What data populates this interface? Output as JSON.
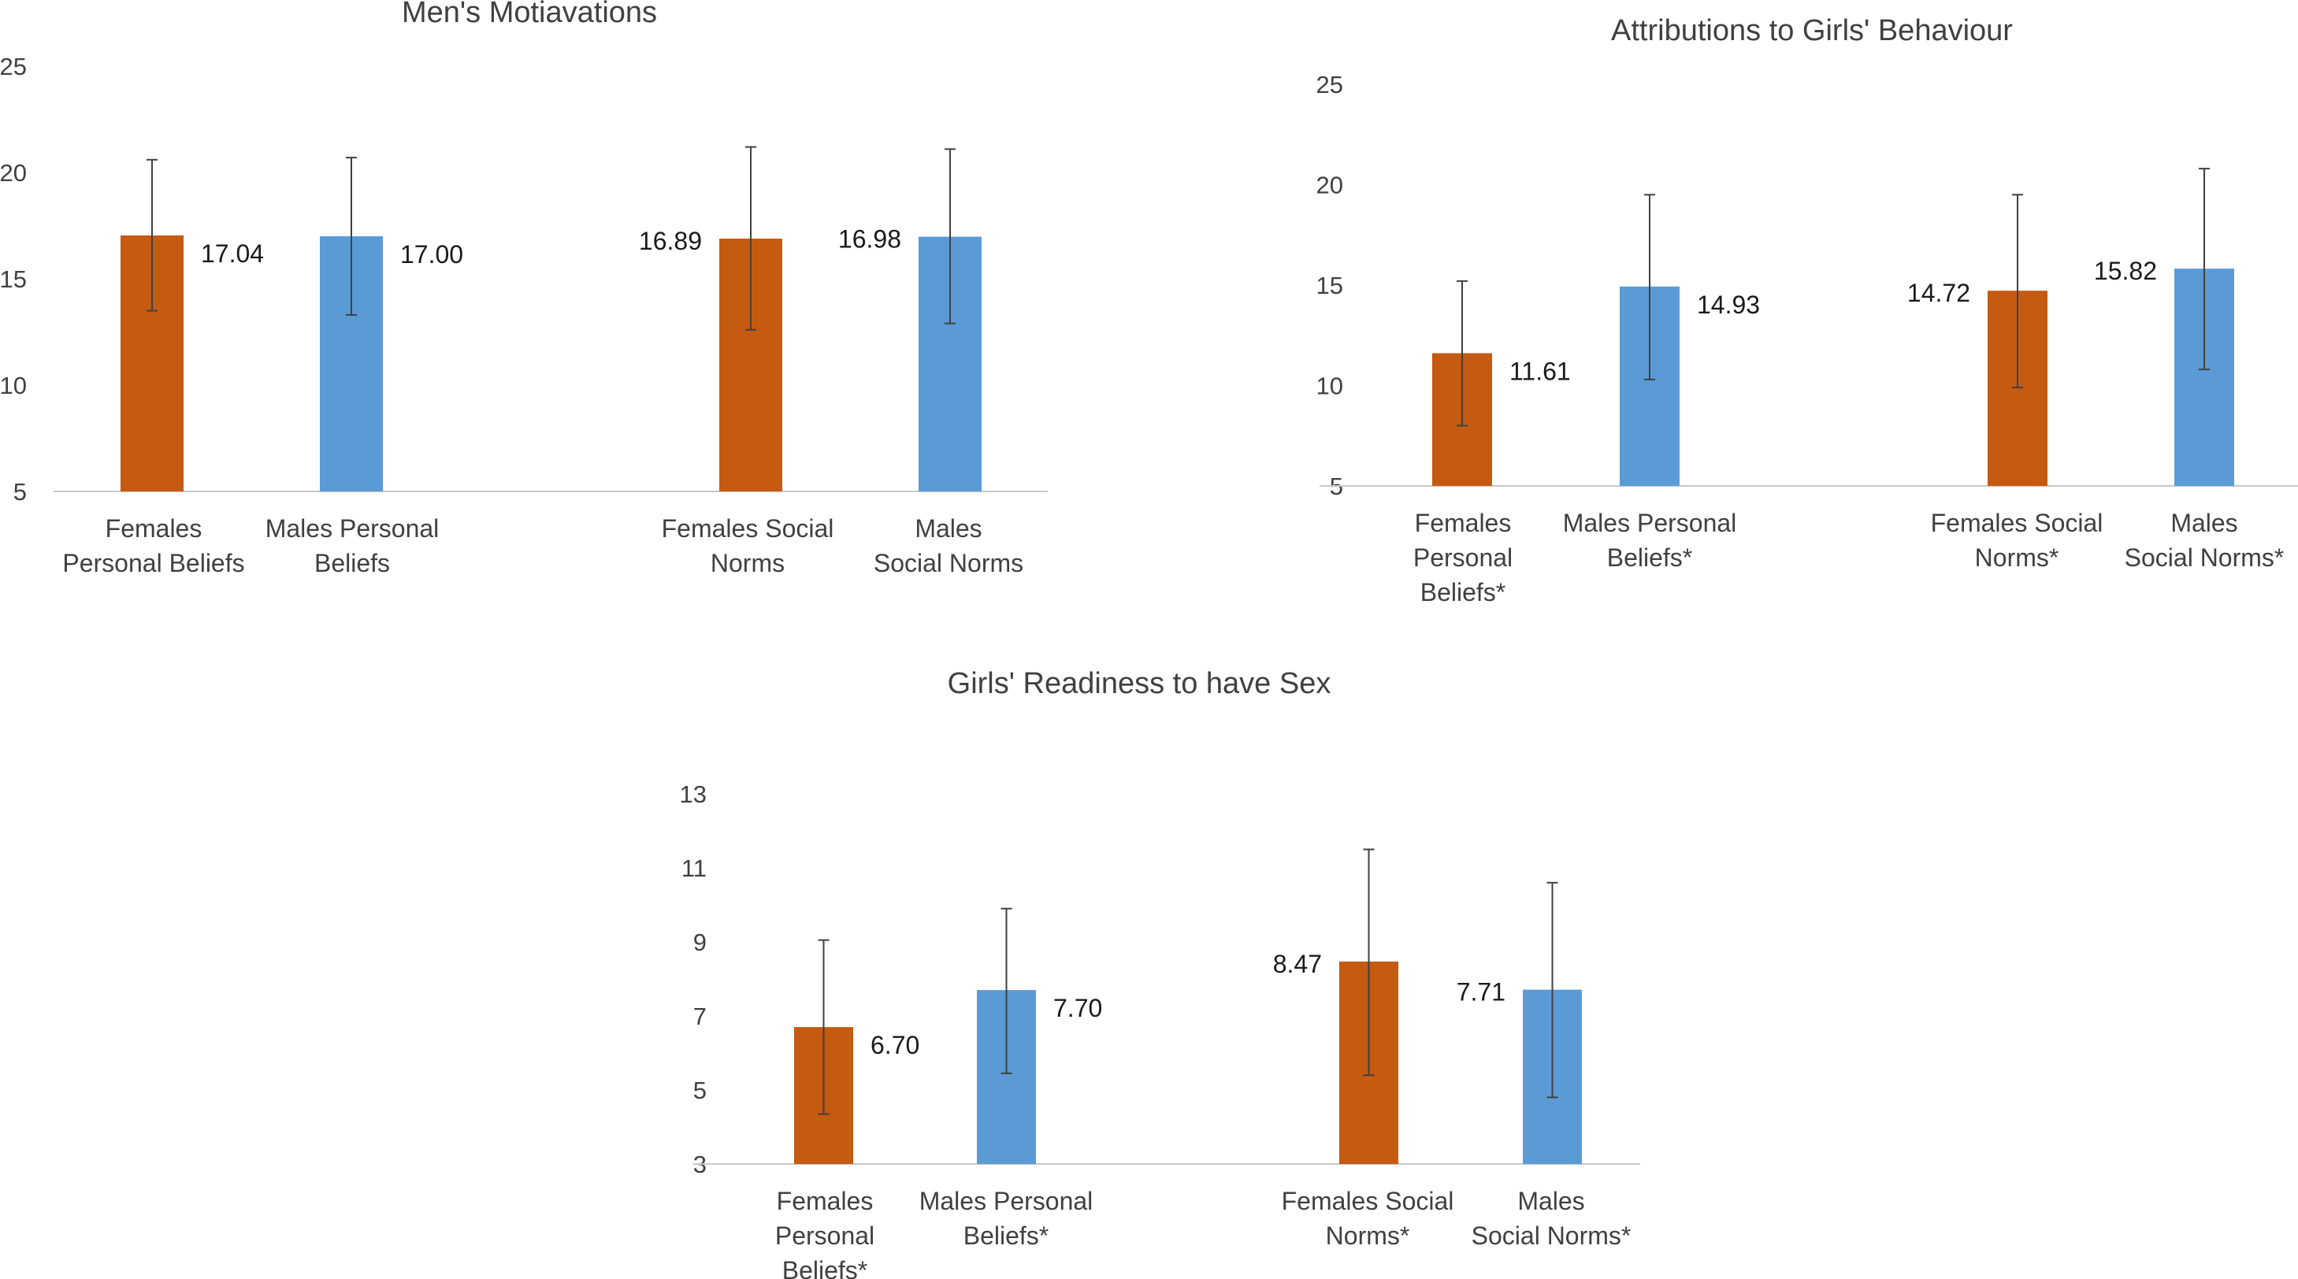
{
  "chart_data": [
    {
      "type": "bar",
      "title": "Men's Motiavations",
      "categories": [
        "Females Personal Beliefs",
        "Males Personal Beliefs",
        "Females Social Norms",
        "Males Social Norms"
      ],
      "category_lines": [
        [
          "Females",
          "Personal Beliefs"
        ],
        [
          "Males Personal",
          "Beliefs"
        ],
        [
          "Females Social",
          "Norms"
        ],
        [
          "Males",
          "Social Norms"
        ]
      ],
      "values": [
        17.04,
        17.0,
        16.89,
        16.98
      ],
      "value_labels": [
        "17.04",
        "17.00",
        "16.89",
        "16.98"
      ],
      "error_low": [
        13.5,
        13.3,
        12.6,
        12.9
      ],
      "error_high": [
        20.6,
        20.7,
        21.2,
        21.1
      ],
      "colors": [
        "#C55A11",
        "#5B9BD5",
        "#C55A11",
        "#5B9BD5"
      ],
      "ylim": [
        5,
        25
      ],
      "yticks": [
        "5",
        "10",
        "15",
        "20",
        "25"
      ],
      "grid": false
    },
    {
      "type": "bar",
      "title": "Attributions to Girls' Behaviour",
      "categories": [
        "Females Personal Beliefs*",
        "Males Personal Beliefs*",
        "Females Social Norms*",
        "Males Social Norms*"
      ],
      "category_lines": [
        [
          "Females",
          "Personal",
          "Beliefs*"
        ],
        [
          "Males Personal",
          "Beliefs*"
        ],
        [
          "Females Social",
          "Norms*"
        ],
        [
          "Males",
          "Social Norms*"
        ]
      ],
      "values": [
        11.61,
        14.93,
        14.72,
        15.82
      ],
      "value_labels": [
        "11.61",
        "14.93",
        "14.72",
        "15.82"
      ],
      "error_low": [
        8.0,
        10.3,
        9.9,
        10.8
      ],
      "error_high": [
        15.2,
        19.5,
        19.5,
        20.8
      ],
      "colors": [
        "#C55A11",
        "#5B9BD5",
        "#C55A11",
        "#5B9BD5"
      ],
      "ylim": [
        5,
        25
      ],
      "yticks": [
        "5",
        "10",
        "15",
        "20",
        "25"
      ],
      "grid": false
    },
    {
      "type": "bar",
      "title": "Girls' Readiness to have Sex",
      "categories": [
        "Females Personal Beliefs*",
        "Males Personal Beliefs*",
        "Females Social Norms*",
        "Males Social Norms*"
      ],
      "category_lines": [
        [
          "Females",
          "Personal",
          "Beliefs*"
        ],
        [
          "Males Personal",
          "Beliefs*"
        ],
        [
          "Females Social",
          "Norms*"
        ],
        [
          "Males",
          "Social Norms*"
        ]
      ],
      "values": [
        6.7,
        7.7,
        8.47,
        7.71
      ],
      "value_labels": [
        "6.70",
        "7.70",
        "8.47",
        "7.71"
      ],
      "error_low": [
        4.35,
        5.45,
        5.4,
        4.8
      ],
      "error_high": [
        9.05,
        9.9,
        11.5,
        10.6
      ],
      "colors": [
        "#C55A11",
        "#5B9BD5",
        "#C55A11",
        "#5B9BD5"
      ],
      "ylim": [
        3,
        13
      ],
      "yticks": [
        "3",
        "5",
        "7",
        "9",
        "11",
        "13"
      ],
      "grid": false
    }
  ]
}
